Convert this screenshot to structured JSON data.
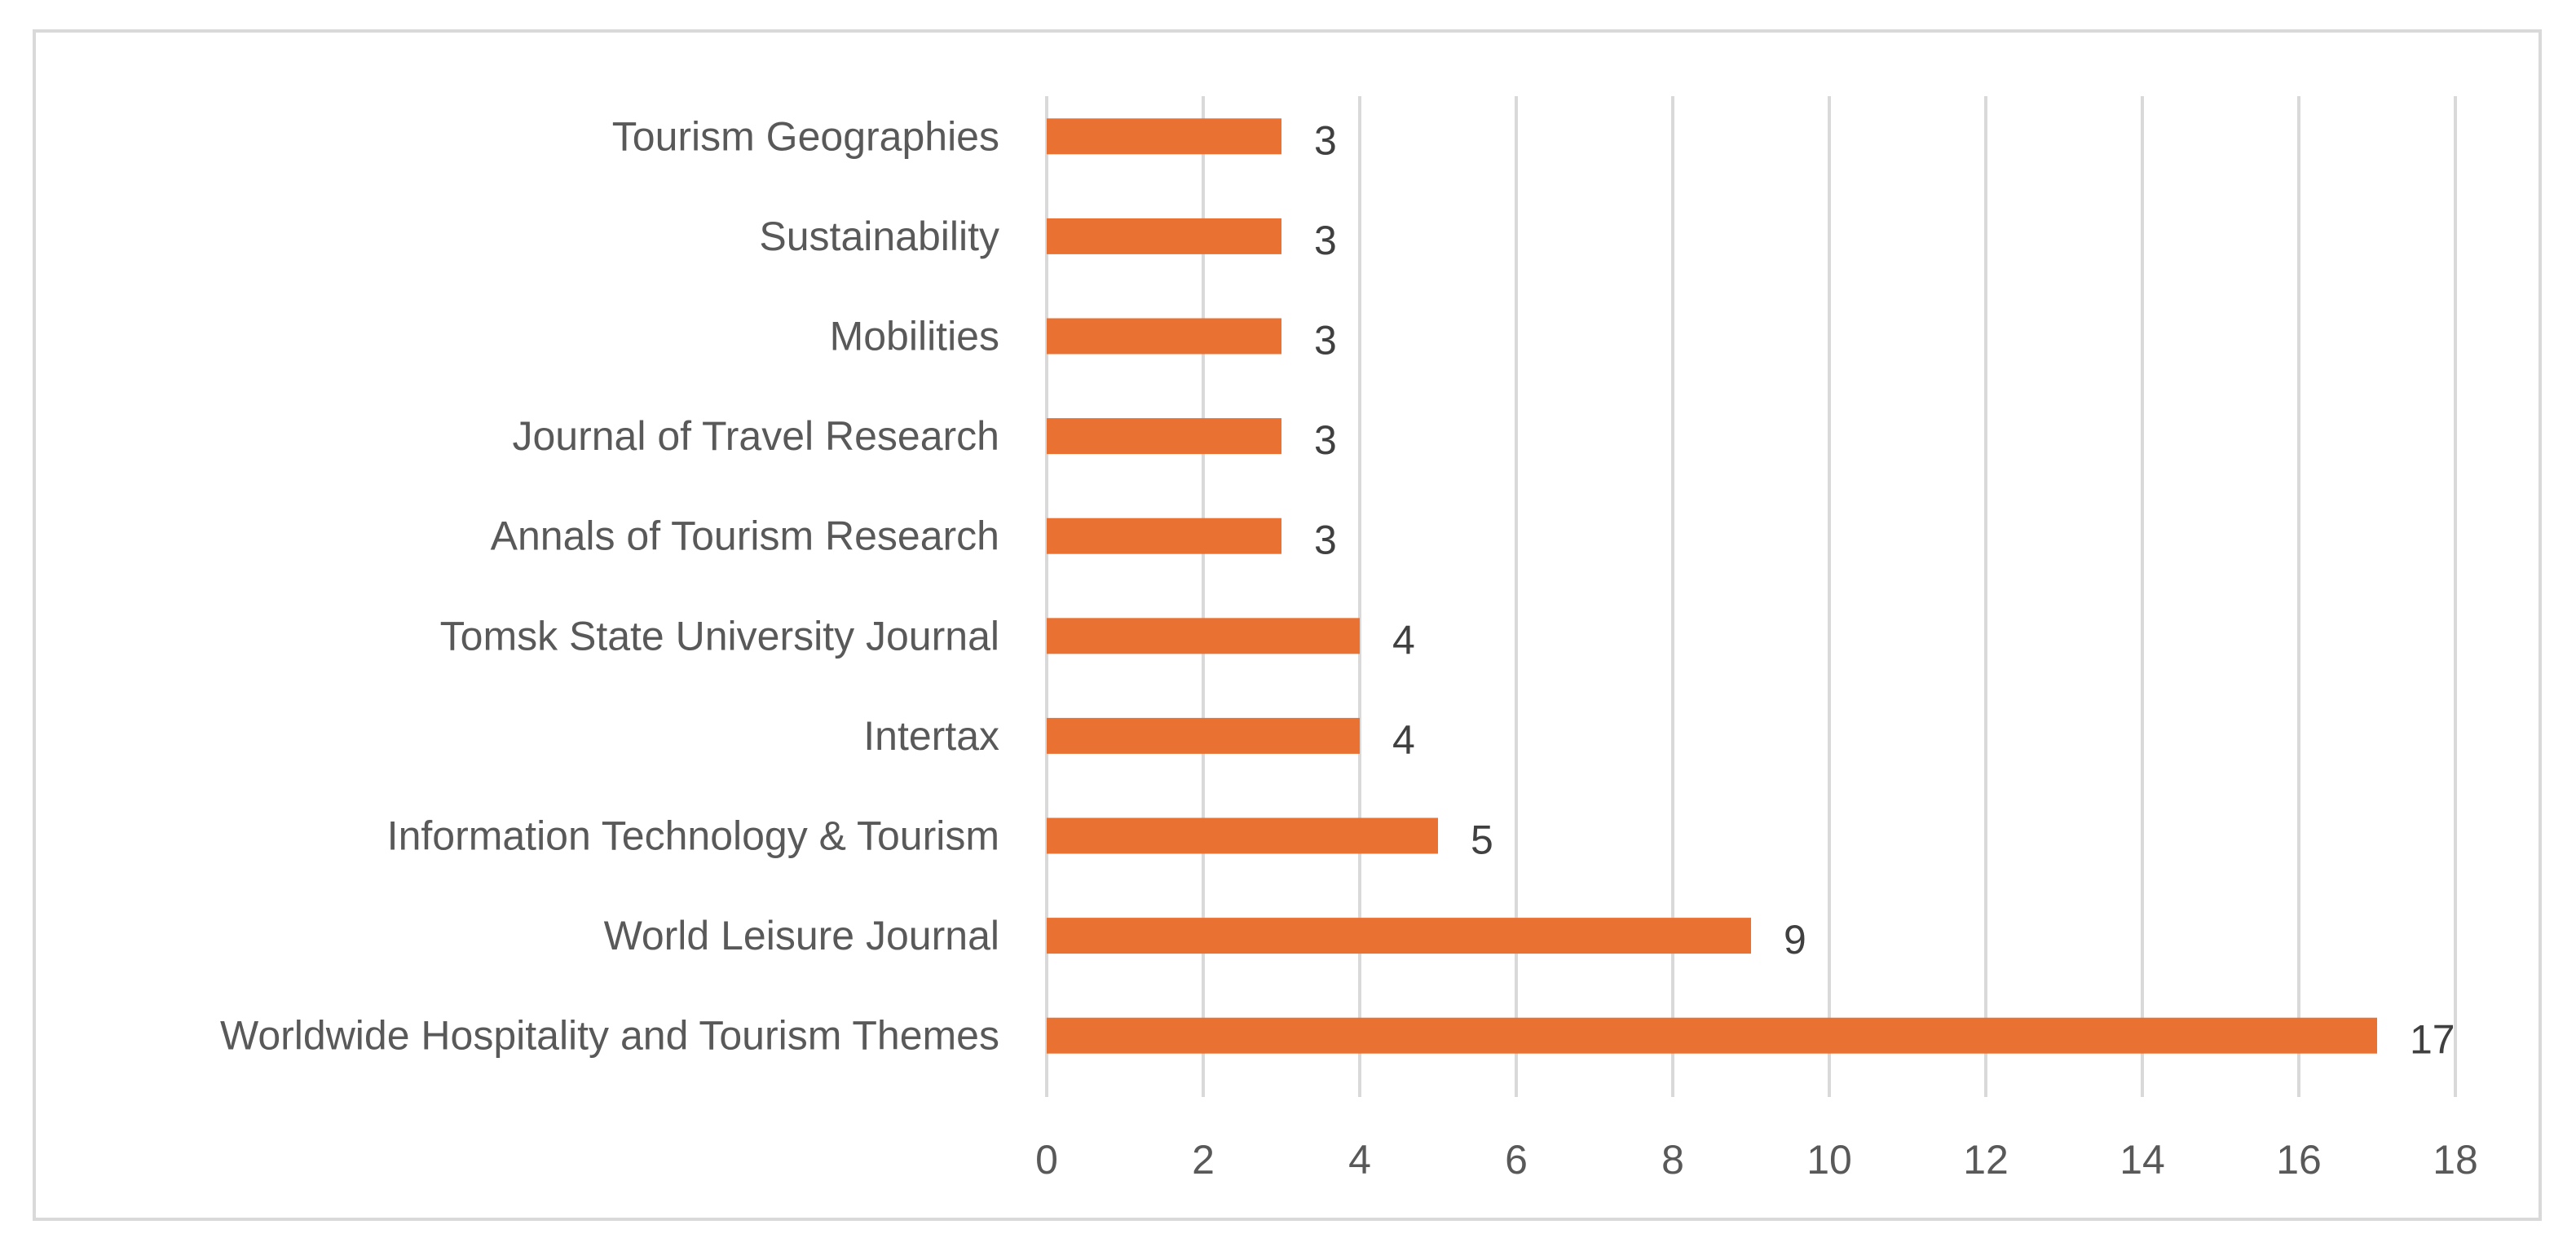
{
  "chart_data": {
    "type": "bar",
    "orientation": "horizontal",
    "title": "",
    "xlabel": "",
    "ylabel": "",
    "categories": [
      "Worldwide Hospitality and Tourism Themes",
      "World Leisure Journal",
      "Information Technology & Tourism",
      "Intertax",
      "Tomsk State University Journal",
      "Annals of Tourism Research",
      "Journal of Travel Research",
      "Mobilities",
      "Sustainability",
      "Tourism Geographies"
    ],
    "values": [
      17,
      9,
      5,
      4,
      4,
      3,
      3,
      3,
      3,
      3
    ],
    "data_labels": [
      "17",
      "9",
      "5",
      "4",
      "4",
      "3",
      "3",
      "3",
      "3",
      "3"
    ],
    "xlim": [
      0,
      18
    ],
    "x_ticks": [
      0,
      2,
      4,
      6,
      8,
      10,
      12,
      14,
      16,
      18
    ],
    "x_tick_labels": [
      "0",
      "2",
      "4",
      "6",
      "8",
      "10",
      "12",
      "14",
      "16",
      "18"
    ],
    "grid": true,
    "legend": "none",
    "bar_color": "#e97132",
    "grid_color": "#d9d9d9"
  }
}
